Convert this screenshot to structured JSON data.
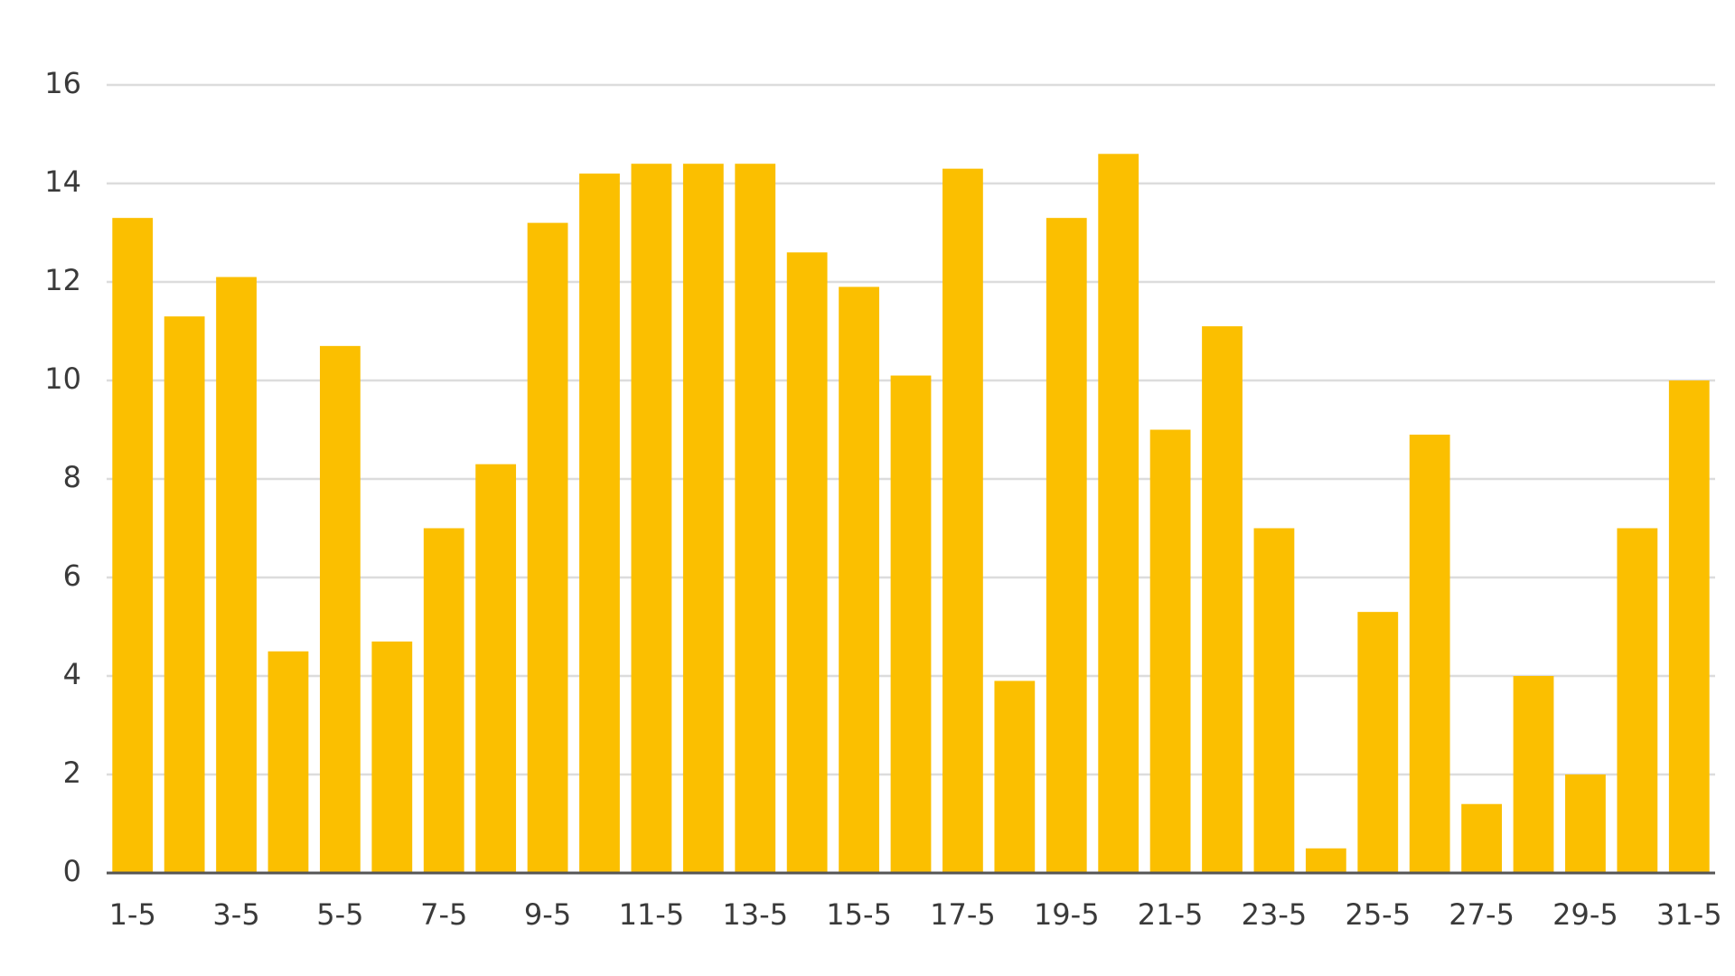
{
  "chart_data": {
    "type": "bar",
    "categories": [
      "1-5",
      null,
      "3-5",
      null,
      "5-5",
      null,
      "7-5",
      null,
      "9-5",
      null,
      "11-5",
      null,
      "13-5",
      null,
      "15-5",
      null,
      "17-5",
      null,
      "19-5",
      null,
      "21-5",
      null,
      "23-5",
      null,
      "25-5",
      null,
      "27-5",
      null,
      "29-5",
      null,
      "31-5"
    ],
    "values": [
      13.3,
      11.3,
      12.1,
      4.5,
      10.7,
      4.7,
      7.0,
      8.3,
      13.2,
      14.2,
      14.4,
      14.4,
      14.4,
      12.6,
      11.9,
      10.1,
      14.3,
      3.9,
      13.3,
      14.6,
      9.0,
      11.1,
      7.0,
      0.5,
      5.3,
      8.9,
      1.4,
      4.0,
      2.0,
      7.0,
      10.0
    ],
    "color": "#fbbf00",
    "ylim": [
      0,
      16
    ],
    "yticks": [
      0,
      2,
      4,
      6,
      8,
      10,
      12,
      14,
      16
    ],
    "grid": true
  }
}
